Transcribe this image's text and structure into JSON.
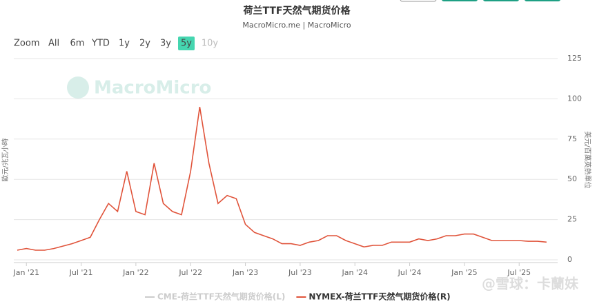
{
  "chart_data": {
    "type": "line",
    "title": "荷兰TTF天然气期货价格",
    "subtitle": "MacroMicro.me | MacroMicro",
    "zoom_label": "Zoom",
    "zoom_buttons": [
      "All",
      "6m",
      "YTD",
      "1y",
      "2y",
      "3y",
      "5y",
      "10y"
    ],
    "zoom_selected": 6,
    "watermark": "MacroMicro",
    "credit": "@雪球：卡蘭妹",
    "y_label": "歐元/兆瓦小時",
    "y2_label": "美元/百萬英熱單位",
    "categories": [
      null,
      "Jan '21",
      null,
      null,
      null,
      null,
      null,
      "Jul '21",
      null,
      null,
      null,
      null,
      null,
      "Jan '22",
      null,
      null,
      null,
      null,
      null,
      "Jul '22",
      null,
      null,
      null,
      null,
      null,
      "Jan '23",
      null,
      null,
      null,
      null,
      null,
      "Jul '23",
      null,
      null,
      null,
      null,
      null,
      "Jan '24",
      null,
      null,
      null,
      null,
      null,
      "Jul '24",
      null,
      null,
      null,
      null,
      null,
      "Jan '25",
      null,
      null,
      null,
      null,
      null,
      "Jul '25",
      null,
      null,
      null
    ],
    "y2lim": [
      0,
      125
    ],
    "y2ticks": [
      0,
      25,
      50,
      75,
      100,
      125
    ],
    "grid": true,
    "series": [
      {
        "name": "CME-荷兰TTF天然气期货价格(L)",
        "color": "#cccccc",
        "axis": "y",
        "visible": false,
        "values": [
          null,
          null,
          null,
          null,
          null,
          null,
          null,
          null,
          null,
          null,
          null,
          null,
          null,
          null,
          null,
          null,
          null,
          null,
          null,
          null,
          null,
          null,
          null,
          null,
          null,
          null,
          null,
          null,
          null,
          null,
          null,
          null,
          null,
          null,
          null,
          null,
          null,
          null,
          null,
          null,
          null,
          null,
          null,
          null,
          null,
          null,
          null,
          null,
          null,
          null,
          null,
          null,
          null,
          null,
          null,
          null,
          null,
          null,
          null
        ]
      },
      {
        "name": "NYMEX-荷兰TTF天然气期货价格(R)",
        "color": "#e0533a",
        "axis": "y2",
        "visible": true,
        "values": [
          6,
          7,
          6,
          6,
          7,
          8.5,
          10,
          12,
          14,
          25,
          35,
          30,
          55,
          30,
          28,
          60,
          35,
          30,
          28,
          55,
          95,
          60,
          35,
          40,
          38,
          22,
          17,
          15,
          13,
          10,
          10,
          9,
          11,
          12,
          15,
          15,
          12,
          10,
          8,
          9,
          9,
          11,
          11,
          11,
          13,
          12,
          13,
          15,
          15,
          16,
          16,
          14,
          12,
          12,
          12,
          12,
          11.5,
          11.5,
          11
        ]
      }
    ]
  }
}
